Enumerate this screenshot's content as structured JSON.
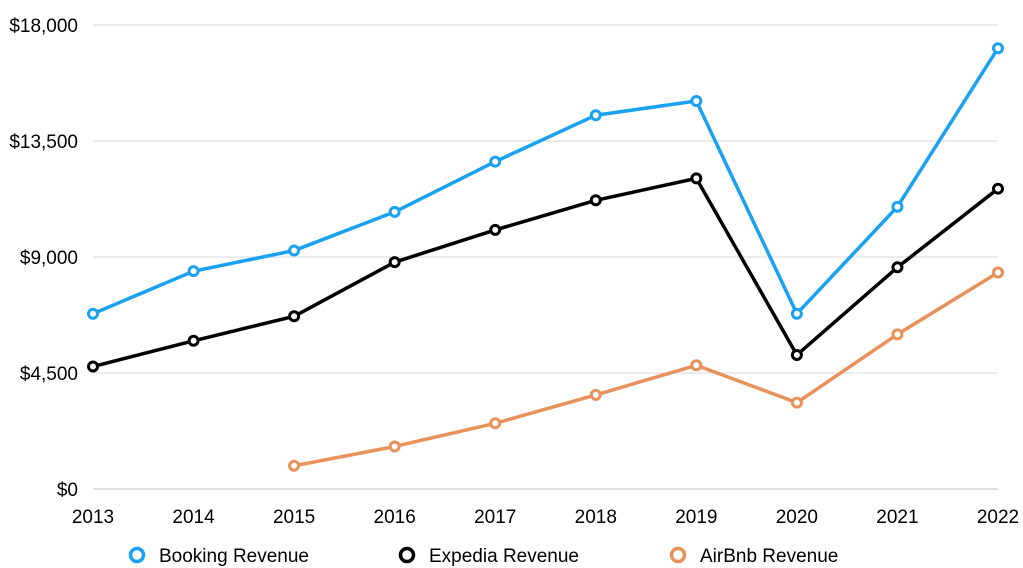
{
  "chart_data": {
    "type": "line",
    "title": "",
    "xlabel": "",
    "ylabel": "",
    "categories": [
      "2013",
      "2014",
      "2015",
      "2016",
      "2017",
      "2018",
      "2019",
      "2020",
      "2021",
      "2022"
    ],
    "ylim": [
      0,
      18000
    ],
    "y_ticks": [
      0,
      4500,
      9000,
      13500,
      18000
    ],
    "y_tick_labels": [
      "$0",
      "$4,500",
      "$9,000",
      "$13,500",
      "$18,000"
    ],
    "grid": "horizontal",
    "legend_position": "bottom",
    "series": [
      {
        "name": "Booking Revenue",
        "color": "#1ba1f2",
        "values": [
          6800,
          8450,
          9250,
          10750,
          12700,
          14500,
          15050,
          6800,
          10950,
          17100
        ]
      },
      {
        "name": "Expedia Revenue",
        "color": "#000000",
        "values": [
          4750,
          5750,
          6700,
          8800,
          10050,
          11200,
          12050,
          5200,
          8600,
          11650
        ]
      },
      {
        "name": "AirBnb Revenue",
        "color": "#e8915a",
        "values": [
          null,
          null,
          900,
          1650,
          2550,
          3650,
          4800,
          3350,
          6000,
          8400
        ]
      }
    ]
  }
}
